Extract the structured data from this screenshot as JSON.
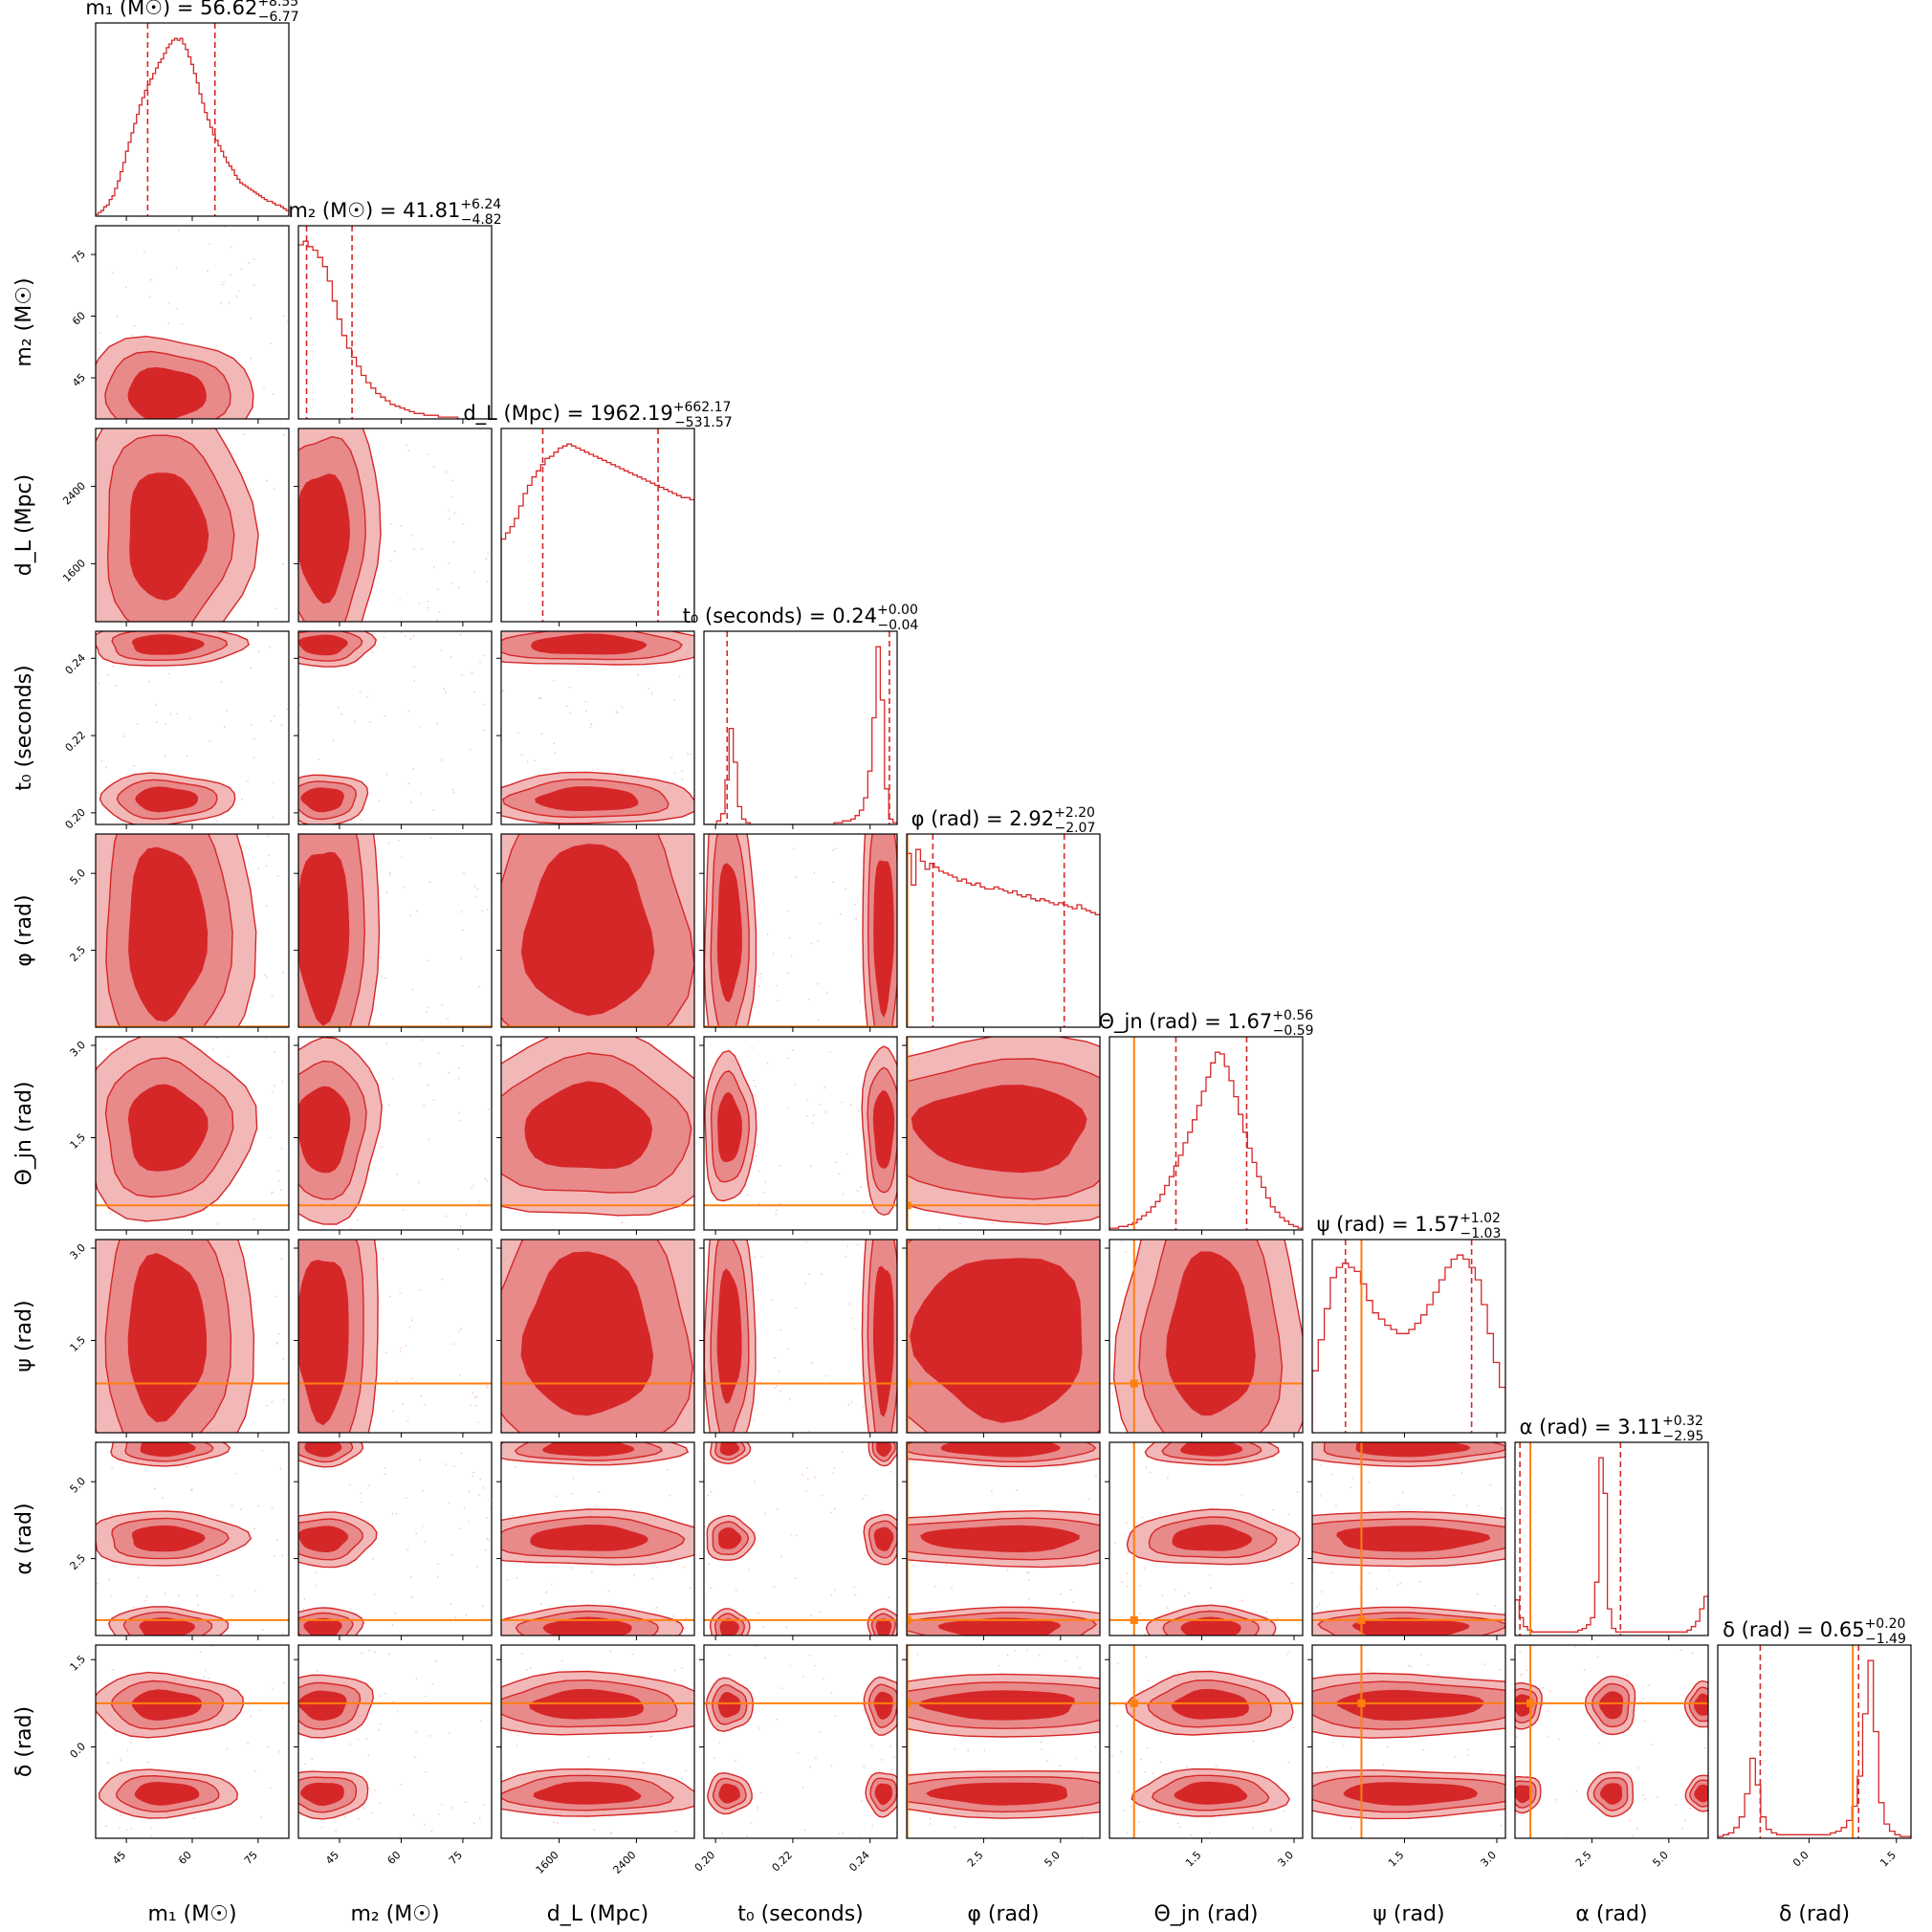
{
  "chart_data": {
    "type": "corner",
    "colors": {
      "posterior": "#d62728",
      "truth": "#ff7f0e",
      "fill_light": "#f2b8b8",
      "fill_mid": "#e8898a"
    },
    "parameters": [
      {
        "key": "m1",
        "axis_label": "m₁ (M☉)",
        "title_main": "m₁ (M☉) = 56.62",
        "title_plus": "+8.55",
        "title_minus": "−6.77",
        "range": [
          38,
          82
        ],
        "ticks": [
          45,
          60,
          75
        ],
        "tick_labels": [
          "45",
          "60",
          "75"
        ],
        "median": 56.62,
        "q_low": 49.85,
        "q_high": 65.17,
        "truth": null
      },
      {
        "key": "m2",
        "axis_label": "m₂ (M☉)",
        "title_main": "m₂ (M☉) = 41.81",
        "title_plus": "+6.24",
        "title_minus": "−4.82",
        "range": [
          35,
          82
        ],
        "ticks": [
          45,
          60,
          75
        ],
        "tick_labels": [
          "45",
          "60",
          "75"
        ],
        "median": 41.81,
        "q_low": 36.99,
        "q_high": 48.05,
        "truth": null
      },
      {
        "key": "dL",
        "axis_label": "d_L (Mpc)",
        "title_main": "d_L (Mpc) = 1962.19",
        "title_plus": "+662.17",
        "title_minus": "−531.57",
        "range": [
          1000,
          3000
        ],
        "ticks": [
          1600,
          2400
        ],
        "tick_labels": [
          "1600",
          "2400"
        ],
        "median": 1962.19,
        "q_low": 1430.62,
        "q_high": 2624.36,
        "truth": null
      },
      {
        "key": "t0",
        "axis_label": "t₀ (seconds)",
        "title_main": "t₀ (seconds) = 0.24",
        "title_plus": "+0.00",
        "title_minus": "−0.04",
        "range": [
          0.197,
          0.247
        ],
        "ticks": [
          0.2,
          0.22,
          0.24
        ],
        "tick_labels": [
          "0.20",
          "0.22",
          "0.24"
        ],
        "median": 0.244,
        "q_low": 0.203,
        "q_high": 0.245,
        "truth": null
      },
      {
        "key": "phi",
        "axis_label": "φ (rad)",
        "title_main": "φ (rad) = 2.92",
        "title_plus": "+2.20",
        "title_minus": "−2.07",
        "range": [
          0.0,
          6.28
        ],
        "ticks": [
          2.5,
          5.0
        ],
        "tick_labels": [
          "2.5",
          "5.0"
        ],
        "median": 2.92,
        "q_low": 0.85,
        "q_high": 5.12,
        "truth": 0.02
      },
      {
        "key": "theta_jn",
        "axis_label": "Θ_jn (rad)",
        "title_main": "Θ_jn (rad) = 1.67",
        "title_plus": "+0.56",
        "title_minus": "−0.59",
        "range": [
          0.0,
          3.14
        ],
        "ticks": [
          1.5,
          3.0
        ],
        "tick_labels": [
          "1.5",
          "3.0"
        ],
        "median": 1.67,
        "q_low": 1.08,
        "q_high": 2.23,
        "truth": 0.4
      },
      {
        "key": "psi",
        "axis_label": "ψ (rad)",
        "title_main": "ψ (rad) = 1.57",
        "title_plus": "+1.02",
        "title_minus": "−1.03",
        "range": [
          0.0,
          3.14
        ],
        "ticks": [
          1.5,
          3.0
        ],
        "tick_labels": [
          "1.5",
          "3.0"
        ],
        "median": 1.57,
        "q_low": 0.54,
        "q_high": 2.59,
        "truth": 0.8
      },
      {
        "key": "alpha",
        "axis_label": "α (rad)",
        "title_main": "α (rad) = 3.11",
        "title_plus": "+0.32",
        "title_minus": "−2.95",
        "range": [
          0.0,
          6.28
        ],
        "ticks": [
          2.5,
          5.0
        ],
        "tick_labels": [
          "2.5",
          "5.0"
        ],
        "median": 3.11,
        "q_low": 0.16,
        "q_high": 3.43,
        "truth": 0.5
      },
      {
        "key": "delta",
        "axis_label": "δ (rad)",
        "title_main": "δ (rad) = 0.65",
        "title_plus": "+0.20",
        "title_minus": "−1.49",
        "range": [
          -1.57,
          1.75
        ],
        "ticks": [
          0.0,
          1.5
        ],
        "tick_labels": [
          "0.0",
          "1.5"
        ],
        "median": 0.65,
        "q_low": -0.84,
        "q_high": 0.85,
        "truth": 0.75
      }
    ],
    "histograms": [
      [
        1,
        2,
        3,
        5,
        6,
        9,
        11,
        15,
        19,
        24,
        29,
        35,
        40,
        45,
        50,
        55,
        60,
        64,
        68,
        71,
        74,
        77,
        80,
        83,
        85,
        88,
        91,
        93,
        95,
        96,
        95,
        96,
        93,
        90,
        86,
        82,
        77,
        72,
        66,
        61,
        56,
        52,
        48,
        44,
        41,
        38,
        35,
        32,
        29,
        27,
        25,
        22,
        20,
        18,
        17,
        16,
        15,
        14,
        13,
        12,
        11,
        10,
        9,
        8,
        8,
        7,
        6,
        6,
        5,
        4,
        3
      ],
      [
        96,
        98,
        95,
        93,
        89,
        84,
        76,
        65,
        55,
        46,
        39,
        34,
        29,
        24,
        20,
        17,
        14,
        12,
        10,
        8,
        7,
        6,
        5,
        4,
        3,
        3,
        2,
        2,
        2,
        1,
        1,
        1,
        1,
        0,
        0,
        0,
        0,
        0,
        0,
        0
      ],
      [
        40,
        43,
        46,
        50,
        56,
        62,
        66,
        70,
        73,
        76,
        79,
        80,
        82,
        84,
        85,
        86,
        85,
        84,
        83,
        82,
        81,
        80,
        79,
        78,
        77,
        76,
        75,
        74,
        73,
        72,
        71,
        70,
        69,
        68,
        67,
        66,
        65,
        64,
        63,
        62,
        61,
        60,
        60,
        59
      ],
      [
        0,
        0,
        0,
        2,
        6,
        25,
        54,
        35,
        10,
        3,
        1,
        0,
        0,
        0,
        0,
        0,
        0,
        0,
        0,
        0,
        0,
        0,
        0,
        0,
        0,
        0,
        0,
        0,
        0,
        0,
        0,
        1,
        1,
        2,
        2,
        3,
        5,
        8,
        15,
        30,
        60,
        100,
        70,
        20,
        3,
        1
      ],
      [
        88,
        72,
        90,
        84,
        80,
        83,
        81,
        79,
        78,
        77,
        76,
        74,
        75,
        73,
        72,
        73,
        71,
        70,
        70,
        71,
        70,
        69,
        68,
        69,
        67,
        66,
        67,
        65,
        64,
        65,
        64,
        63,
        62,
        63,
        62,
        61,
        60,
        62,
        60,
        59,
        58,
        57
      ],
      [
        1,
        1,
        2,
        2,
        3,
        4,
        6,
        8,
        10,
        13,
        16,
        20,
        25,
        30,
        36,
        42,
        49,
        55,
        62,
        70,
        78,
        86,
        94,
        100,
        99,
        92,
        84,
        75,
        65,
        55,
        46,
        38,
        30,
        24,
        18,
        13,
        10,
        7,
        5,
        3,
        2,
        1
      ],
      [
        30,
        45,
        60,
        75,
        80,
        82,
        80,
        78,
        72,
        64,
        58,
        55,
        52,
        50,
        48,
        48,
        50,
        53,
        57,
        62,
        68,
        74,
        80,
        84,
        86,
        84,
        80,
        74,
        62,
        48,
        34,
        22
      ],
      [
        20,
        10,
        5,
        3,
        2,
        2,
        2,
        2,
        2,
        2,
        2,
        2,
        2,
        2,
        2,
        3,
        4,
        6,
        10,
        30,
        100,
        80,
        15,
        4,
        2,
        2,
        2,
        2,
        2,
        2,
        2,
        2,
        2,
        2,
        2,
        2,
        2,
        2,
        2,
        2,
        2,
        3,
        5,
        8,
        15,
        22
      ],
      [
        1,
        2,
        3,
        6,
        12,
        25,
        45,
        30,
        12,
        5,
        3,
        2,
        2,
        2,
        2,
        2,
        2,
        2,
        2,
        2,
        2,
        3,
        4,
        6,
        10,
        18,
        35,
        70,
        100,
        60,
        20,
        8,
        4,
        2,
        1,
        1
      ]
    ],
    "blobs_note": "2-D density contours depicted as filled regions at 1σ (dark) / 2σ (mid) / 3σ (light)"
  }
}
